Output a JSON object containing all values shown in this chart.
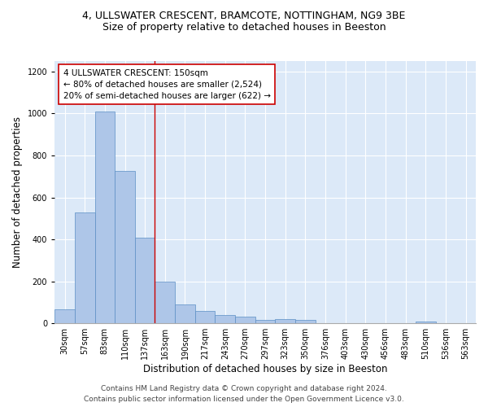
{
  "title_line1": "4, ULLSWATER CRESCENT, BRAMCOTE, NOTTINGHAM, NG9 3BE",
  "title_line2": "Size of property relative to detached houses in Beeston",
  "xlabel": "Distribution of detached houses by size in Beeston",
  "ylabel": "Number of detached properties",
  "bar_labels": [
    "30sqm",
    "57sqm",
    "83sqm",
    "110sqm",
    "137sqm",
    "163sqm",
    "190sqm",
    "217sqm",
    "243sqm",
    "270sqm",
    "297sqm",
    "323sqm",
    "350sqm",
    "376sqm",
    "403sqm",
    "430sqm",
    "456sqm",
    "483sqm",
    "510sqm",
    "536sqm",
    "563sqm"
  ],
  "bar_values": [
    68,
    530,
    1010,
    725,
    410,
    200,
    90,
    60,
    40,
    33,
    17,
    22,
    18,
    0,
    0,
    0,
    0,
    0,
    10,
    0,
    0
  ],
  "bar_color": "#aec6e8",
  "bar_edge_color": "#5b8ec4",
  "vline_color": "#cc0000",
  "vline_x_index": 4.5,
  "annotation_text": "4 ULLSWATER CRESCENT: 150sqm\n← 80% of detached houses are smaller (2,524)\n20% of semi-detached houses are larger (622) →",
  "annotation_box_color": "#ffffff",
  "annotation_box_edge": "#cc0000",
  "ylim": [
    0,
    1250
  ],
  "yticks": [
    0,
    200,
    400,
    600,
    800,
    1000,
    1200
  ],
  "background_color": "#dce9f8",
  "footer": "Contains HM Land Registry data © Crown copyright and database right 2024.\nContains public sector information licensed under the Open Government Licence v3.0.",
  "title_fontsize": 9,
  "subtitle_fontsize": 9,
  "axis_label_fontsize": 8.5,
  "tick_fontsize": 7,
  "annotation_fontsize": 7.5,
  "footer_fontsize": 6.5
}
